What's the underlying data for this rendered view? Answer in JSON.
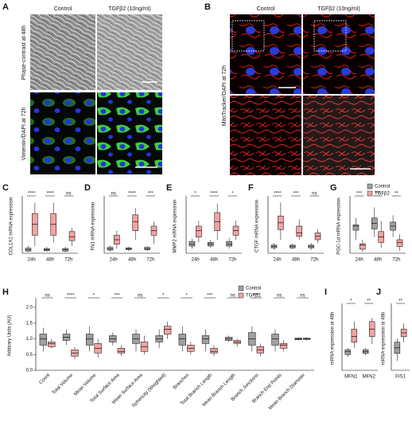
{
  "panel_a": {
    "letter": "A",
    "columns": [
      "Control",
      "TGFβ2 (10ng/ml)"
    ],
    "rows": [
      "Phase-contrast at 48h",
      "Vimentin/DAPI at 72h"
    ]
  },
  "panel_b": {
    "letter": "B",
    "columns": [
      "Control",
      "TGFβ2 (10ng/ml)"
    ],
    "rows": [
      "MitoTracker/DAPI at 72h"
    ]
  },
  "chart_data": [
    {
      "type": "box",
      "letter": "C",
      "ylabel": "COL1A1 mRNA expression",
      "categories": [
        "24h",
        "48h",
        "72h"
      ],
      "ylim": [
        0,
        15
      ],
      "series": [
        {
          "color": "#a0a0a0",
          "boxes": [
            [
              0.3,
              0.6,
              1,
              1.4,
              2
            ],
            [
              0.4,
              0.7,
              1,
              1.3,
              1.8
            ],
            [
              0.3,
              0.6,
              1,
              1.3,
              1.8
            ]
          ]
        },
        {
          "color": "#f4a3a3",
          "boxes": [
            [
              2,
              5,
              8,
              11,
              14
            ],
            [
              3,
              5,
              8,
              11,
              14
            ],
            [
              2,
              3.5,
              4.5,
              6,
              7
            ]
          ]
        }
      ],
      "significance": [
        "****",
        "****",
        "ns"
      ]
    },
    {
      "type": "box",
      "letter": "D",
      "ylabel": "FN1 mRNA expression",
      "categories": [
        "24h",
        "48h",
        "72h"
      ],
      "ylim": [
        0,
        12
      ],
      "series": [
        {
          "color": "#a0a0a0",
          "boxes": [
            [
              0.4,
              0.7,
              1,
              1.3,
              1.7
            ],
            [
              0.5,
              0.8,
              1,
              1.2,
              1.5
            ],
            [
              0.5,
              0.8,
              1,
              1.3,
              1.6
            ]
          ]
        },
        {
          "color": "#f4a3a3",
          "boxes": [
            [
              1,
              2,
              3,
              4,
              5
            ],
            [
              3,
              5,
              7,
              8.5,
              10
            ],
            [
              2,
              4,
              5,
              6,
              7
            ]
          ]
        }
      ],
      "significance": [
        "ns",
        "****",
        "***"
      ]
    },
    {
      "type": "box",
      "letter": "E",
      "ylabel": "MMP2 mRNA expression",
      "categories": [
        "24h",
        "48h",
        "72h"
      ],
      "ylim": [
        0,
        6
      ],
      "series": [
        {
          "color": "#a0a0a0",
          "boxes": [
            [
              0.5,
              0.8,
              1,
              1.3,
              1.6
            ],
            [
              0.6,
              0.8,
              1,
              1.2,
              1.5
            ],
            [
              0.5,
              0.8,
              1,
              1.3,
              1.7
            ]
          ]
        },
        {
          "color": "#f4a3a3",
          "boxes": [
            [
              1.2,
              1.8,
              2.5,
              3,
              3.6
            ],
            [
              1.5,
              2.5,
              3.5,
              4.5,
              5.5
            ],
            [
              1.5,
              2,
              2.5,
              3,
              3.6
            ]
          ]
        }
      ],
      "significance": [
        "*",
        "****",
        "*"
      ]
    },
    {
      "type": "box",
      "letter": "F",
      "ylabel": "CTGF mRNA expression",
      "categories": [
        "24h",
        "48h",
        "72h"
      ],
      "ylim": [
        0,
        8
      ],
      "series": [
        {
          "color": "#a0a0a0",
          "boxes": [
            [
              0.5,
              0.8,
              1,
              1.2,
              1.5
            ],
            [
              0.6,
              0.8,
              1,
              1.2,
              1.4
            ],
            [
              0.5,
              0.8,
              1,
              1.2,
              1.5
            ]
          ]
        },
        {
          "color": "#f4a3a3",
          "boxes": [
            [
              2,
              3.5,
              4.5,
              5.5,
              7.5
            ],
            [
              2,
              2.5,
              3,
              4,
              5
            ],
            [
              1.5,
              2,
              2.5,
              3,
              3.5
            ]
          ]
        }
      ],
      "significance": [
        "****",
        "***",
        "ns"
      ]
    },
    {
      "type": "box",
      "letter": "G",
      "ylabel": "PGC-1α mRNA expression",
      "categories": [
        "24h",
        "48h",
        "72h"
      ],
      "ylim": [
        0,
        2
      ],
      "series": [
        {
          "name": "Control",
          "color": "#a0a0a0",
          "boxes": [
            [
              0.5,
              0.85,
              1,
              1.05,
              1.3
            ],
            [
              0.6,
              0.9,
              1.1,
              1.3,
              1.7
            ],
            [
              0.6,
              0.85,
              1,
              1.15,
              1.4
            ]
          ]
        },
        {
          "name": "TGFβ2",
          "color": "#f4a3a3",
          "boxes": [
            [
              0.05,
              0.15,
              0.3,
              0.35,
              0.5
            ],
            [
              0.2,
              0.4,
              0.6,
              0.8,
              1.2
            ],
            [
              0.1,
              0.25,
              0.4,
              0.5,
              0.7
            ]
          ]
        }
      ],
      "significance": [
        "***",
        "***",
        "**"
      ]
    },
    {
      "type": "box",
      "letter": "H",
      "ylabel": "Arbitrary Units (AU)",
      "categories": [
        "Count",
        "Total Volume",
        "Mean Volume",
        "Total Surface Area",
        "Mean Surface Area",
        "Sphericity (Weighted)",
        "Branches",
        "Total Branch Length",
        "Mean Branch Length",
        "Branch Junctions",
        "Branch End Points",
        "Mean Branch Diameter"
      ],
      "ylim": [
        0,
        2.2
      ],
      "yticks": [
        {
          "value": 0,
          "label": "0.0"
        },
        0.5,
        {
          "value": 1,
          "label": "1.0"
        },
        {
          "value": 1.5,
          "label": "1.5"
        },
        {
          "value": 2,
          "label": "2.0"
        }
      ],
      "series": [
        {
          "name": "Control",
          "color": "#a0a0a0",
          "boxes": [
            [
              0.6,
              0.8,
              1,
              1.15,
              1.35
            ],
            [
              0.8,
              0.95,
              1.05,
              1.15,
              1.3
            ],
            [
              0.6,
              0.8,
              1,
              1.15,
              1.4
            ],
            [
              0.8,
              0.9,
              1,
              1.1,
              1.2
            ],
            [
              0.6,
              0.85,
              1,
              1.15,
              1.3
            ],
            [
              0.7,
              0.9,
              1,
              1.1,
              1.3
            ],
            [
              0.6,
              0.8,
              1,
              1.15,
              1.4
            ],
            [
              0.6,
              0.85,
              1,
              1.1,
              1.3
            ],
            [
              0.9,
              0.95,
              1,
              1.05,
              1.1
            ],
            [
              0.6,
              0.8,
              1,
              1.2,
              1.4
            ],
            [
              0.6,
              0.8,
              1,
              1.15,
              1.3
            ],
            [
              0.95,
              0.97,
              1,
              1.02,
              1.05
            ]
          ]
        },
        {
          "name": "TGFβ2",
          "color": "#f4a3a3",
          "boxes": [
            [
              0.7,
              0.75,
              0.85,
              0.9,
              1
            ],
            [
              0.35,
              0.45,
              0.55,
              0.65,
              0.75
            ],
            [
              0.4,
              0.55,
              0.7,
              0.85,
              1
            ],
            [
              0.45,
              0.55,
              0.6,
              0.7,
              0.8
            ],
            [
              0.5,
              0.6,
              0.75,
              0.9,
              1.1
            ],
            [
              1,
              1.15,
              1.3,
              1.4,
              1.55
            ],
            [
              0.5,
              0.6,
              0.7,
              0.8,
              0.9
            ],
            [
              0.45,
              0.55,
              0.6,
              0.7,
              0.8
            ],
            [
              0.75,
              0.85,
              0.9,
              0.95,
              1
            ],
            [
              0.45,
              0.55,
              0.65,
              0.75,
              0.85
            ],
            [
              0.6,
              0.7,
              0.8,
              0.85,
              0.95
            ],
            [
              0.95,
              0.98,
              1,
              1.02,
              1.05
            ]
          ]
        }
      ],
      "significance": [
        "ns",
        "****",
        "*",
        "***",
        "ns",
        "*",
        "*",
        "***",
        "ns",
        "***",
        "ns",
        "ns"
      ]
    },
    {
      "type": "box",
      "letter": "I",
      "ylabel": "mRNA expression at 48h",
      "categories": [
        "MFN1",
        "MFN2"
      ],
      "ylim": [
        0.5,
        2.2
      ],
      "series": [
        {
          "color": "#a0a0a0",
          "boxes": [
            [
              0.85,
              0.92,
              1,
              1.05,
              1.1
            ],
            [
              0.9,
              0.95,
              1,
              1.05,
              1.1
            ]
          ]
        },
        {
          "color": "#f4a3a3",
          "boxes": [
            [
              1.1,
              1.25,
              1.4,
              1.6,
              1.8
            ],
            [
              1.2,
              1.4,
              1.6,
              1.8,
              1.9
            ]
          ]
        }
      ],
      "significance": [
        "*",
        "**"
      ]
    },
    {
      "type": "box",
      "letter": "J",
      "ylabel": "mRNA expression at 48h",
      "categories": [
        "FIS1"
      ],
      "ylim": [
        0.5,
        2.2
      ],
      "series": [
        {
          "color": "#a0a0a0",
          "boxes": [
            [
              0.75,
              0.95,
              1.1,
              1.25,
              1.35
            ]
          ]
        },
        {
          "color": "#f4a3a3",
          "boxes": [
            [
              1.25,
              1.4,
              1.5,
              1.6,
              1.75
            ]
          ]
        }
      ],
      "significance": [
        "**"
      ]
    }
  ]
}
